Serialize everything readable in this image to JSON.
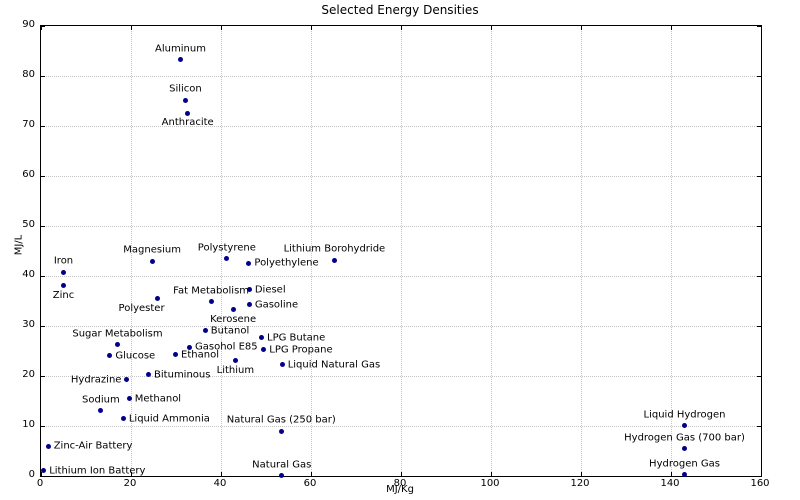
{
  "chart_data": {
    "type": "scatter",
    "title": "Selected Energy Densities",
    "xlabel": "MJ/Kg",
    "ylabel": "MJ/L",
    "xlim": [
      0,
      160
    ],
    "ylim": [
      0,
      90
    ],
    "xticks": [
      0,
      20,
      40,
      60,
      80,
      100,
      120,
      140,
      160
    ],
    "yticks": [
      0,
      10,
      20,
      30,
      40,
      50,
      60,
      70,
      80,
      90
    ],
    "grid": true,
    "grid_style": "dotted",
    "legend": "none",
    "marker": "circle",
    "marker_color": "#00008b",
    "points": [
      {
        "label": "Aluminum",
        "x": 31.0,
        "y": 83.3,
        "label_pos": "above"
      },
      {
        "label": "Silicon",
        "x": 32.1,
        "y": 75.2,
        "label_pos": "above"
      },
      {
        "label": "Anthracite",
        "x": 32.6,
        "y": 72.6,
        "label_pos": "below"
      },
      {
        "label": "Magnesium",
        "x": 24.7,
        "y": 43.0,
        "label_pos": "above"
      },
      {
        "label": "Polystyrene",
        "x": 41.3,
        "y": 43.5,
        "label_pos": "above"
      },
      {
        "label": "Lithium Borohydride",
        "x": 65.2,
        "y": 43.2,
        "label_pos": "above"
      },
      {
        "label": "Polyethylene",
        "x": 46.2,
        "y": 42.6,
        "label_pos": "right"
      },
      {
        "label": "Iron",
        "x": 5.0,
        "y": 40.8,
        "label_pos": "above"
      },
      {
        "label": "Zinc",
        "x": 5.0,
        "y": 38.1,
        "label_pos": "below"
      },
      {
        "label": "Diesel",
        "x": 46.3,
        "y": 37.3,
        "label_pos": "right"
      },
      {
        "label": "Polyester",
        "x": 25.9,
        "y": 35.5,
        "label_pos": "below-left"
      },
      {
        "label": "Fat Metabolism",
        "x": 37.8,
        "y": 34.9,
        "label_pos": "above"
      },
      {
        "label": "Gasoline",
        "x": 46.3,
        "y": 34.3,
        "label_pos": "right"
      },
      {
        "label": "Kerosene",
        "x": 42.7,
        "y": 33.3,
        "label_pos": "below"
      },
      {
        "label": "Butanol",
        "x": 36.5,
        "y": 29.1,
        "label_pos": "right"
      },
      {
        "label": "LPG Butane",
        "x": 49.0,
        "y": 27.7,
        "label_pos": "right"
      },
      {
        "label": "Sugar Metabolism",
        "x": 17.0,
        "y": 26.3,
        "label_pos": "above"
      },
      {
        "label": "Gasohol E85",
        "x": 33.0,
        "y": 25.8,
        "label_pos": "right"
      },
      {
        "label": "LPG Propane",
        "x": 49.5,
        "y": 25.3,
        "label_pos": "right"
      },
      {
        "label": "Ethanol",
        "x": 29.9,
        "y": 24.3,
        "label_pos": "right"
      },
      {
        "label": "Glucose",
        "x": 15.3,
        "y": 24.1,
        "label_pos": "right"
      },
      {
        "label": "Lithium",
        "x": 43.2,
        "y": 23.1,
        "label_pos": "below"
      },
      {
        "label": "Liquid Natural Gas",
        "x": 53.6,
        "y": 22.3,
        "label_pos": "right"
      },
      {
        "label": "Bituminous",
        "x": 23.9,
        "y": 20.3,
        "label_pos": "right"
      },
      {
        "label": "Hydrazine",
        "x": 19.1,
        "y": 19.3,
        "label_pos": "left"
      },
      {
        "label": "Methanol",
        "x": 19.6,
        "y": 15.5,
        "label_pos": "right"
      },
      {
        "label": "Sodium",
        "x": 13.3,
        "y": 13.1,
        "label_pos": "above"
      },
      {
        "label": "Liquid Ammonia",
        "x": 18.3,
        "y": 11.5,
        "label_pos": "right"
      },
      {
        "label": "Natural Gas (250 bar)",
        "x": 53.4,
        "y": 9.0,
        "label_pos": "above"
      },
      {
        "label": "Zinc-Air Battery",
        "x": 1.6,
        "y": 6.0,
        "label_pos": "right"
      },
      {
        "label": "Lithium Ion Battery",
        "x": 0.6,
        "y": 1.1,
        "label_pos": "right"
      },
      {
        "label": "Natural Gas",
        "x": 53.5,
        "y": 0.1,
        "label_pos": "above"
      },
      {
        "label": "Liquid Hydrogen",
        "x": 143.0,
        "y": 10.1,
        "label_pos": "above"
      },
      {
        "label": "Hydrogen Gas (700 bar)",
        "x": 143.0,
        "y": 5.5,
        "label_pos": "above"
      },
      {
        "label": "Hydrogen Gas",
        "x": 143.0,
        "y": 0.3,
        "label_pos": "above"
      }
    ]
  }
}
